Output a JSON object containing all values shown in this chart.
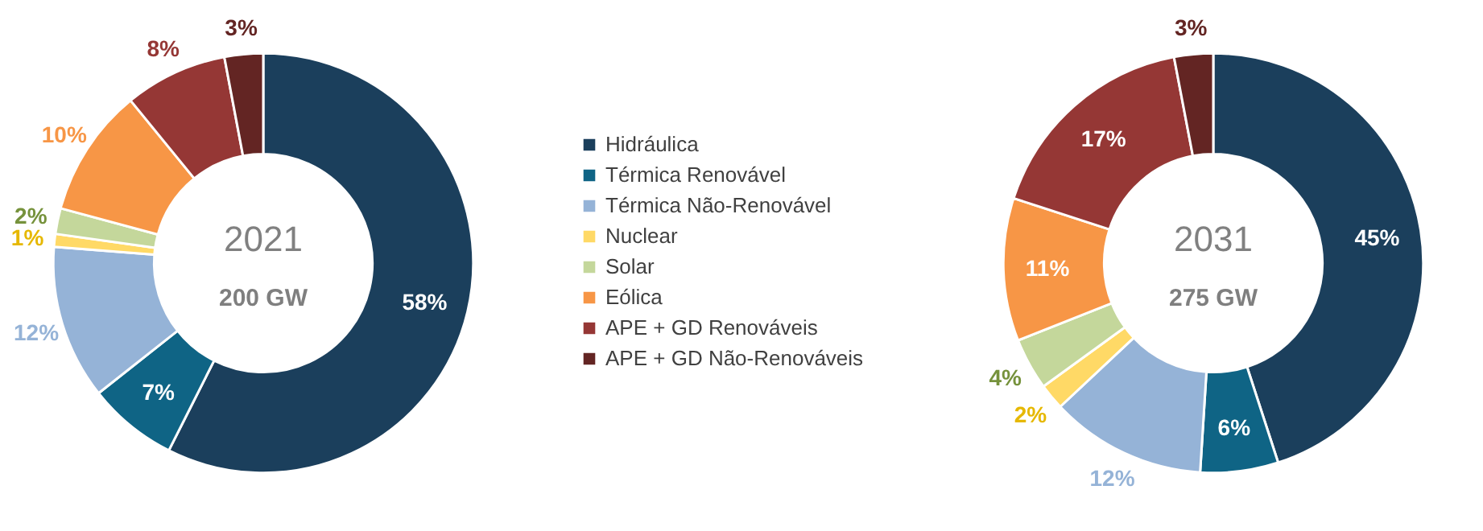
{
  "chart_data": [
    {
      "type": "donut",
      "title": "2021",
      "subtitle": "200 GW",
      "categories": [
        "Hidráulica",
        "Térmica Renovável",
        "Térmica Não-Renovável",
        "Nuclear",
        "Solar",
        "Eólica",
        "APE + GD Renováveis",
        "APE + GD Não-Renováveis"
      ],
      "values": [
        58,
        7,
        12,
        1,
        2,
        10,
        8,
        3
      ],
      "value_labels": [
        "58%",
        "7%",
        "12%",
        "1%",
        "2%",
        "10%",
        "8%",
        "3%"
      ],
      "colors": [
        "#1b3f5c",
        "#0f6485",
        "#95b3d7",
        "#ffd966",
        "#c4d79b",
        "#f79646",
        "#953735",
        "#632523"
      ],
      "legend": "right"
    },
    {
      "type": "donut",
      "title": "2031",
      "subtitle": "275 GW",
      "categories": [
        null,
        null,
        null,
        null,
        null,
        null,
        null,
        null
      ],
      "values": [
        45,
        6,
        12,
        2,
        4,
        11,
        17,
        3
      ],
      "value_labels": [
        "45%",
        "6%",
        "12%",
        "2%",
        "4%",
        "11%",
        "17%",
        "3%"
      ],
      "colors": [
        "#1b3f5c",
        "#0f6485",
        "#95b3d7",
        "#ffd966",
        "#c4d79b",
        "#f79646",
        "#953735",
        "#632523"
      ]
    }
  ]
}
